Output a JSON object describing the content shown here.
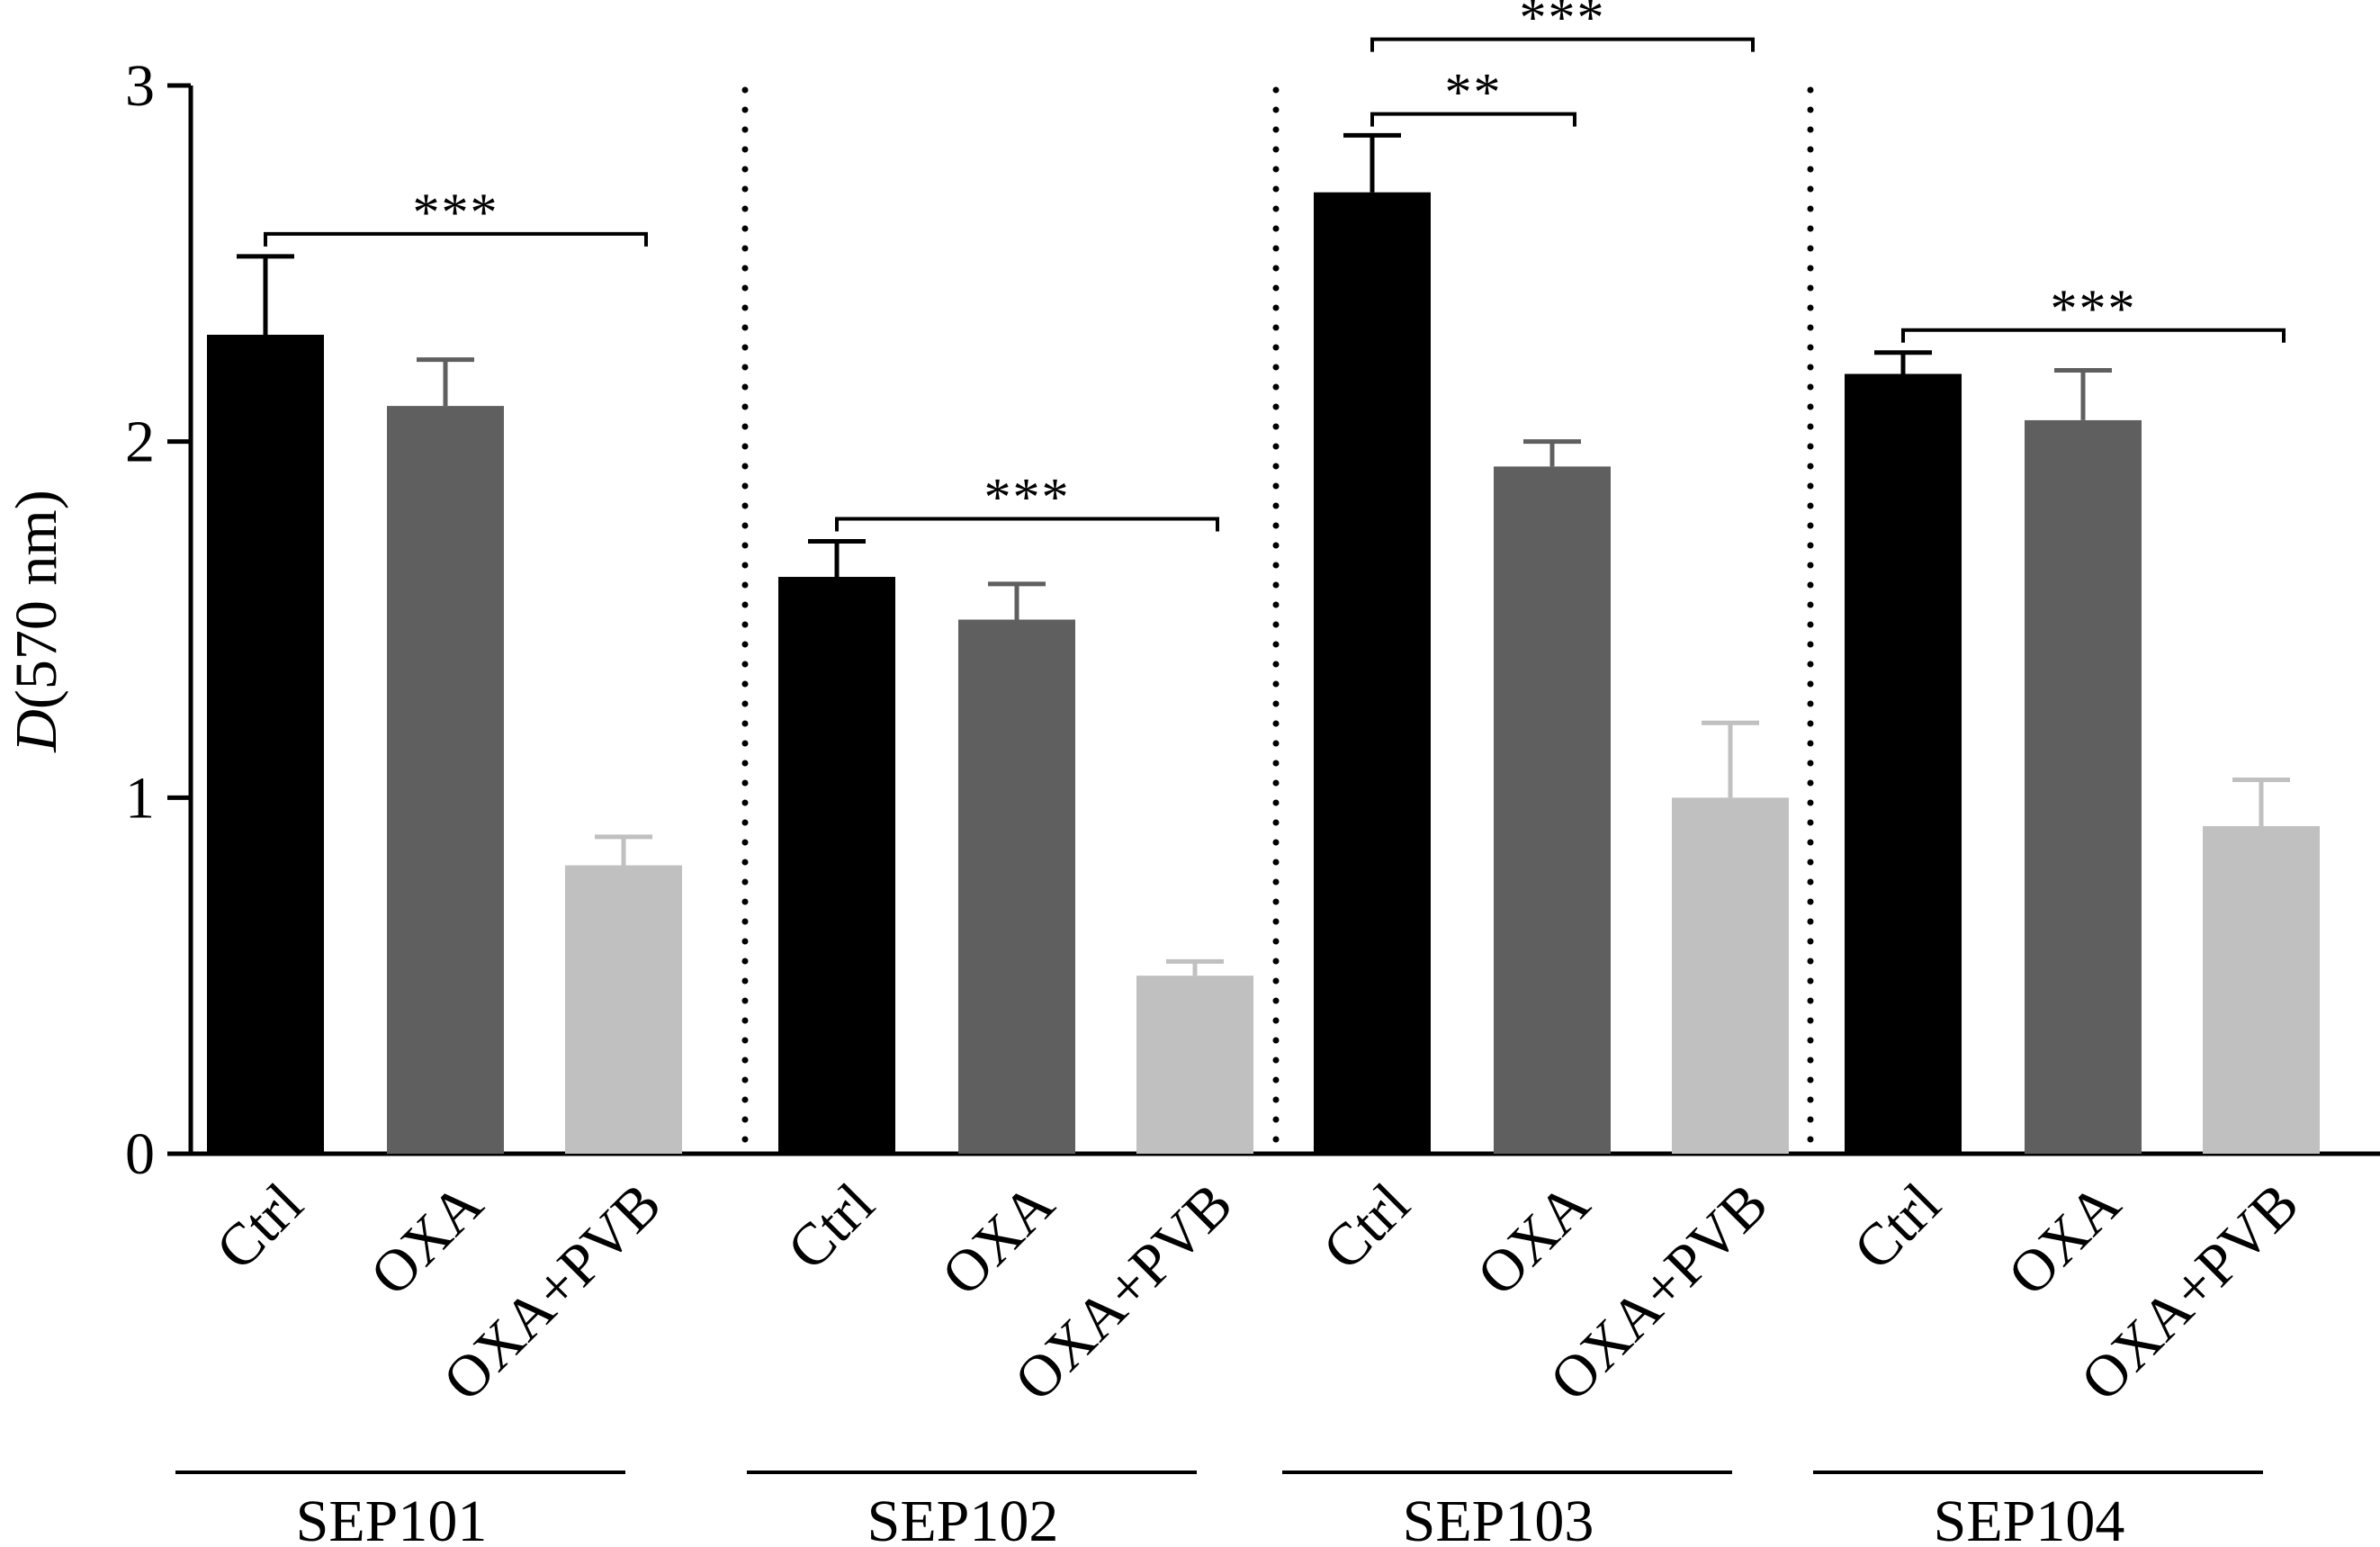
{
  "chart_data": {
    "type": "bar",
    "title": "",
    "xlabel": "",
    "ylabel": "D(570 nm)",
    "ylabel_italic_part": "D",
    "ylabel_rest": "(570 nm)",
    "ylim": [
      0,
      3
    ],
    "yticks": [
      0,
      1,
      2,
      3
    ],
    "grid": false,
    "legend": "none",
    "series_colors": {
      "Ctrl": "#000000",
      "OXA": "#5f5f5f",
      "OXA+PVB": "#c0c0c0"
    },
    "error_bar_colors": {
      "Ctrl": "#000000",
      "OXA": "#5f5f5f",
      "OXA+PVB": "#c0c0c0"
    },
    "separator_style": "dotted",
    "groups": [
      {
        "name": "SEP101",
        "bars": [
          {
            "category": "Ctrl",
            "value": 2.3,
            "error": 0.22
          },
          {
            "category": "OXA",
            "value": 2.1,
            "error": 0.13
          },
          {
            "category": "OXA+PVB",
            "value": 0.81,
            "error": 0.08
          }
        ],
        "significance": [
          {
            "from": 0,
            "to": 2,
            "label": "***",
            "level": 0
          }
        ]
      },
      {
        "name": "SEP102",
        "bars": [
          {
            "category": "Ctrl",
            "value": 1.62,
            "error": 0.1
          },
          {
            "category": "OXA",
            "value": 1.5,
            "error": 0.1
          },
          {
            "category": "OXA+PVB",
            "value": 0.5,
            "error": 0.04
          }
        ],
        "significance": [
          {
            "from": 0,
            "to": 2,
            "label": "***",
            "level": 0
          }
        ]
      },
      {
        "name": "SEP103",
        "bars": [
          {
            "category": "Ctrl",
            "value": 2.7,
            "error": 0.16
          },
          {
            "category": "OXA",
            "value": 1.93,
            "error": 0.07
          },
          {
            "category": "OXA+PVB",
            "value": 1.0,
            "error": 0.21
          }
        ],
        "significance": [
          {
            "from": 0,
            "to": 1,
            "label": "**",
            "level": 0
          },
          {
            "from": 0,
            "to": 2,
            "label": "***",
            "level": 1
          }
        ]
      },
      {
        "name": "SEP104",
        "bars": [
          {
            "category": "Ctrl",
            "value": 2.19,
            "error": 0.06
          },
          {
            "category": "OXA",
            "value": 2.06,
            "error": 0.14
          },
          {
            "category": "OXA+PVB",
            "value": 0.92,
            "error": 0.13
          }
        ],
        "significance": [
          {
            "from": 0,
            "to": 2,
            "label": "***",
            "level": 0
          }
        ]
      }
    ]
  }
}
